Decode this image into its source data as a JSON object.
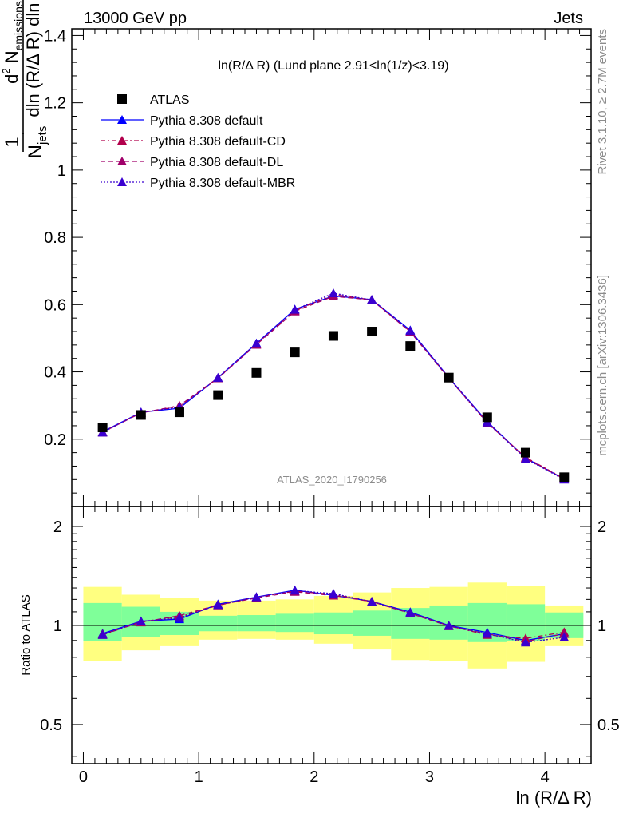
{
  "header": {
    "left": "13000 GeV pp",
    "right": "Jets"
  },
  "side_labels": {
    "rivet": "Rivet 3.1.10, ≥ 2.7M events",
    "mcplots": "mcplots.cern.ch [arXiv:1306.3436]"
  },
  "plot_title": "ln(R/Δ R) (Lund plane 2.91<ln(1/z)<3.19)",
  "watermark": "ATLAS_2020_I1790256",
  "axis": {
    "ylabel_top": "1/N_jets d²N_emissions / dln(R/Δ R) dln(1/z)",
    "ylabel_bottom": "Ratio to ATLAS",
    "xlabel": "ln (R/Δ R)"
  },
  "colors": {
    "data": "#000000",
    "default": "#0000ff",
    "cd": "#b2004c",
    "dl": "#a0006a",
    "mbr": "#3a00d0",
    "band_inner": "#7fff99",
    "band_outer": "#ffff80"
  },
  "chart_data": [
    {
      "type": "scatter",
      "xlabel": "ln (R/Δ R)",
      "ylabel": "1/N_jets d²N_emissions / dln(R/Δ R) dln(1/z)",
      "xlim": [
        -0.1,
        4.4
      ],
      "ylim": [
        0,
        1.42
      ],
      "xticks": [
        0,
        1,
        2,
        3,
        4
      ],
      "yticks": [
        0.2,
        0.4,
        0.6,
        0.8,
        1,
        1.2,
        1.4
      ],
      "x": [
        0.167,
        0.5,
        0.833,
        1.167,
        1.5,
        1.833,
        2.167,
        2.5,
        2.833,
        3.167,
        3.5,
        3.833,
        4.167
      ],
      "series": [
        {
          "name": "ATLAS",
          "style": "data",
          "values": [
            0.235,
            0.272,
            0.28,
            0.331,
            0.397,
            0.458,
            0.507,
            0.52,
            0.477,
            0.383,
            0.265,
            0.16,
            0.087
          ]
        },
        {
          "name": "Pythia 8.308 default",
          "style": "solid",
          "values": [
            0.222,
            0.28,
            0.292,
            0.383,
            0.485,
            0.586,
            0.626,
            0.615,
            0.524,
            0.383,
            0.252,
            0.144,
            0.082
          ]
        },
        {
          "name": "Pythia 8.308 default-CD",
          "style": "dashdot",
          "values": [
            0.22,
            0.279,
            0.297,
            0.381,
            0.483,
            0.582,
            0.63,
            0.614,
            0.52,
            0.382,
            0.248,
            0.146,
            0.083
          ]
        },
        {
          "name": "Pythia 8.308 default-DL",
          "style": "dashed",
          "values": [
            0.221,
            0.278,
            0.3,
            0.382,
            0.481,
            0.58,
            0.625,
            0.614,
            0.519,
            0.381,
            0.25,
            0.143,
            0.082
          ]
        },
        {
          "name": "Pythia 8.308 default-MBR",
          "style": "dotted",
          "values": [
            0.22,
            0.28,
            0.295,
            0.382,
            0.484,
            0.585,
            0.634,
            0.614,
            0.522,
            0.382,
            0.25,
            0.142,
            0.08
          ]
        }
      ]
    },
    {
      "type": "line",
      "ylabel": "Ratio to ATLAS",
      "xlabel": "ln (R/Δ R)",
      "xlim": [
        -0.1,
        4.4
      ],
      "ylim": [
        0.38,
        2.3
      ],
      "yscale": "log",
      "yticks": [
        0.5,
        1,
        2
      ],
      "x": [
        0.167,
        0.5,
        0.833,
        1.167,
        1.5,
        1.833,
        2.167,
        2.5,
        2.833,
        3.167,
        3.5,
        3.833,
        4.167
      ],
      "bin_edges": [
        0,
        0.333,
        0.667,
        1,
        1.333,
        1.667,
        2,
        2.333,
        2.667,
        3,
        3.333,
        3.667,
        4,
        4.333
      ],
      "band_inner": {
        "lo": [
          0.895,
          0.92,
          0.935,
          0.96,
          0.96,
          0.955,
          0.94,
          0.93,
          0.91,
          0.905,
          0.89,
          0.895,
          0.915
        ],
        "hi": [
          1.17,
          1.14,
          1.1,
          1.07,
          1.075,
          1.085,
          1.095,
          1.11,
          1.13,
          1.15,
          1.17,
          1.16,
          1.095
        ]
      },
      "band_outer": {
        "lo": [
          0.78,
          0.84,
          0.865,
          0.905,
          0.91,
          0.905,
          0.88,
          0.845,
          0.785,
          0.78,
          0.74,
          0.775,
          0.865
        ],
        "hi": [
          1.31,
          1.24,
          1.21,
          1.19,
          1.19,
          1.2,
          1.23,
          1.26,
          1.3,
          1.31,
          1.35,
          1.32,
          1.15
        ]
      },
      "series": [
        {
          "name": "Pythia 8.308 default",
          "style": "solid",
          "values": [
            0.945,
            1.03,
            1.045,
            1.16,
            1.22,
            1.28,
            1.235,
            1.183,
            1.098,
            1.0,
            0.952,
            0.9,
            0.943
          ]
        },
        {
          "name": "Pythia 8.308 default-CD",
          "style": "dashdot",
          "values": [
            0.936,
            1.026,
            1.061,
            1.151,
            1.217,
            1.271,
            1.243,
            1.181,
            1.09,
            0.997,
            0.936,
            0.913,
            0.954
          ]
        },
        {
          "name": "Pythia 8.308 default-DL",
          "style": "dashed",
          "values": [
            0.94,
            1.022,
            1.071,
            1.154,
            1.212,
            1.266,
            1.233,
            1.181,
            1.088,
            0.995,
            0.943,
            0.894,
            0.943
          ]
        },
        {
          "name": "Pythia 8.308 default-MBR",
          "style": "dotted",
          "values": [
            0.936,
            1.029,
            1.054,
            1.154,
            1.219,
            1.277,
            1.25,
            1.181,
            1.094,
            0.997,
            0.943,
            0.888,
            0.92
          ]
        }
      ]
    }
  ]
}
